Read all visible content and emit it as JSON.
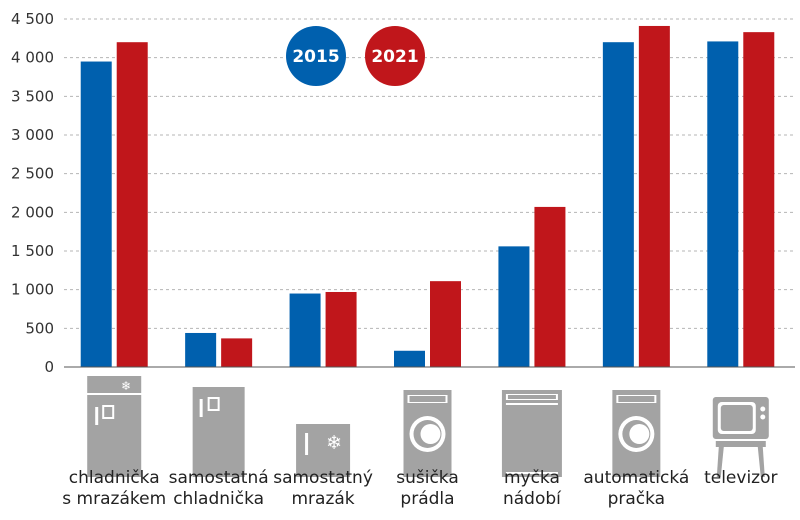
{
  "chart_data": {
    "type": "bar",
    "categories": [
      [
        "chladnička",
        "s mrazákem"
      ],
      [
        "samostatná",
        "chladnička"
      ],
      [
        "samostatný",
        "mrazák"
      ],
      [
        "sušička",
        "prádla"
      ],
      [
        "myčka",
        "nádobí"
      ],
      [
        "automatická",
        "pračka"
      ],
      [
        "televizor"
      ]
    ],
    "icons": [
      "fridge-freezer-icon",
      "fridge-icon",
      "freezer-icon",
      "dryer-icon",
      "dishwasher-icon",
      "washing-machine-icon",
      "television-icon"
    ],
    "series": [
      {
        "name": "2015",
        "color": "#0060ae",
        "values": [
          3950,
          440,
          950,
          210,
          1560,
          4200,
          4210
        ]
      },
      {
        "name": "2021",
        "color": "#c0161b",
        "values": [
          4200,
          370,
          970,
          1110,
          2070,
          4410,
          4330
        ]
      }
    ],
    "ylim": [
      0,
      4500
    ],
    "yticks": [
      0,
      500,
      1000,
      1500,
      2000,
      2500,
      3000,
      3500,
      4000,
      4500
    ],
    "ytick_labels": [
      "0",
      "500",
      "1 000",
      "1 500",
      "2 000",
      "2 500",
      "3 000",
      "3 500",
      "4 000",
      "4 500"
    ],
    "grid": true,
    "legend_position": "top-center"
  }
}
